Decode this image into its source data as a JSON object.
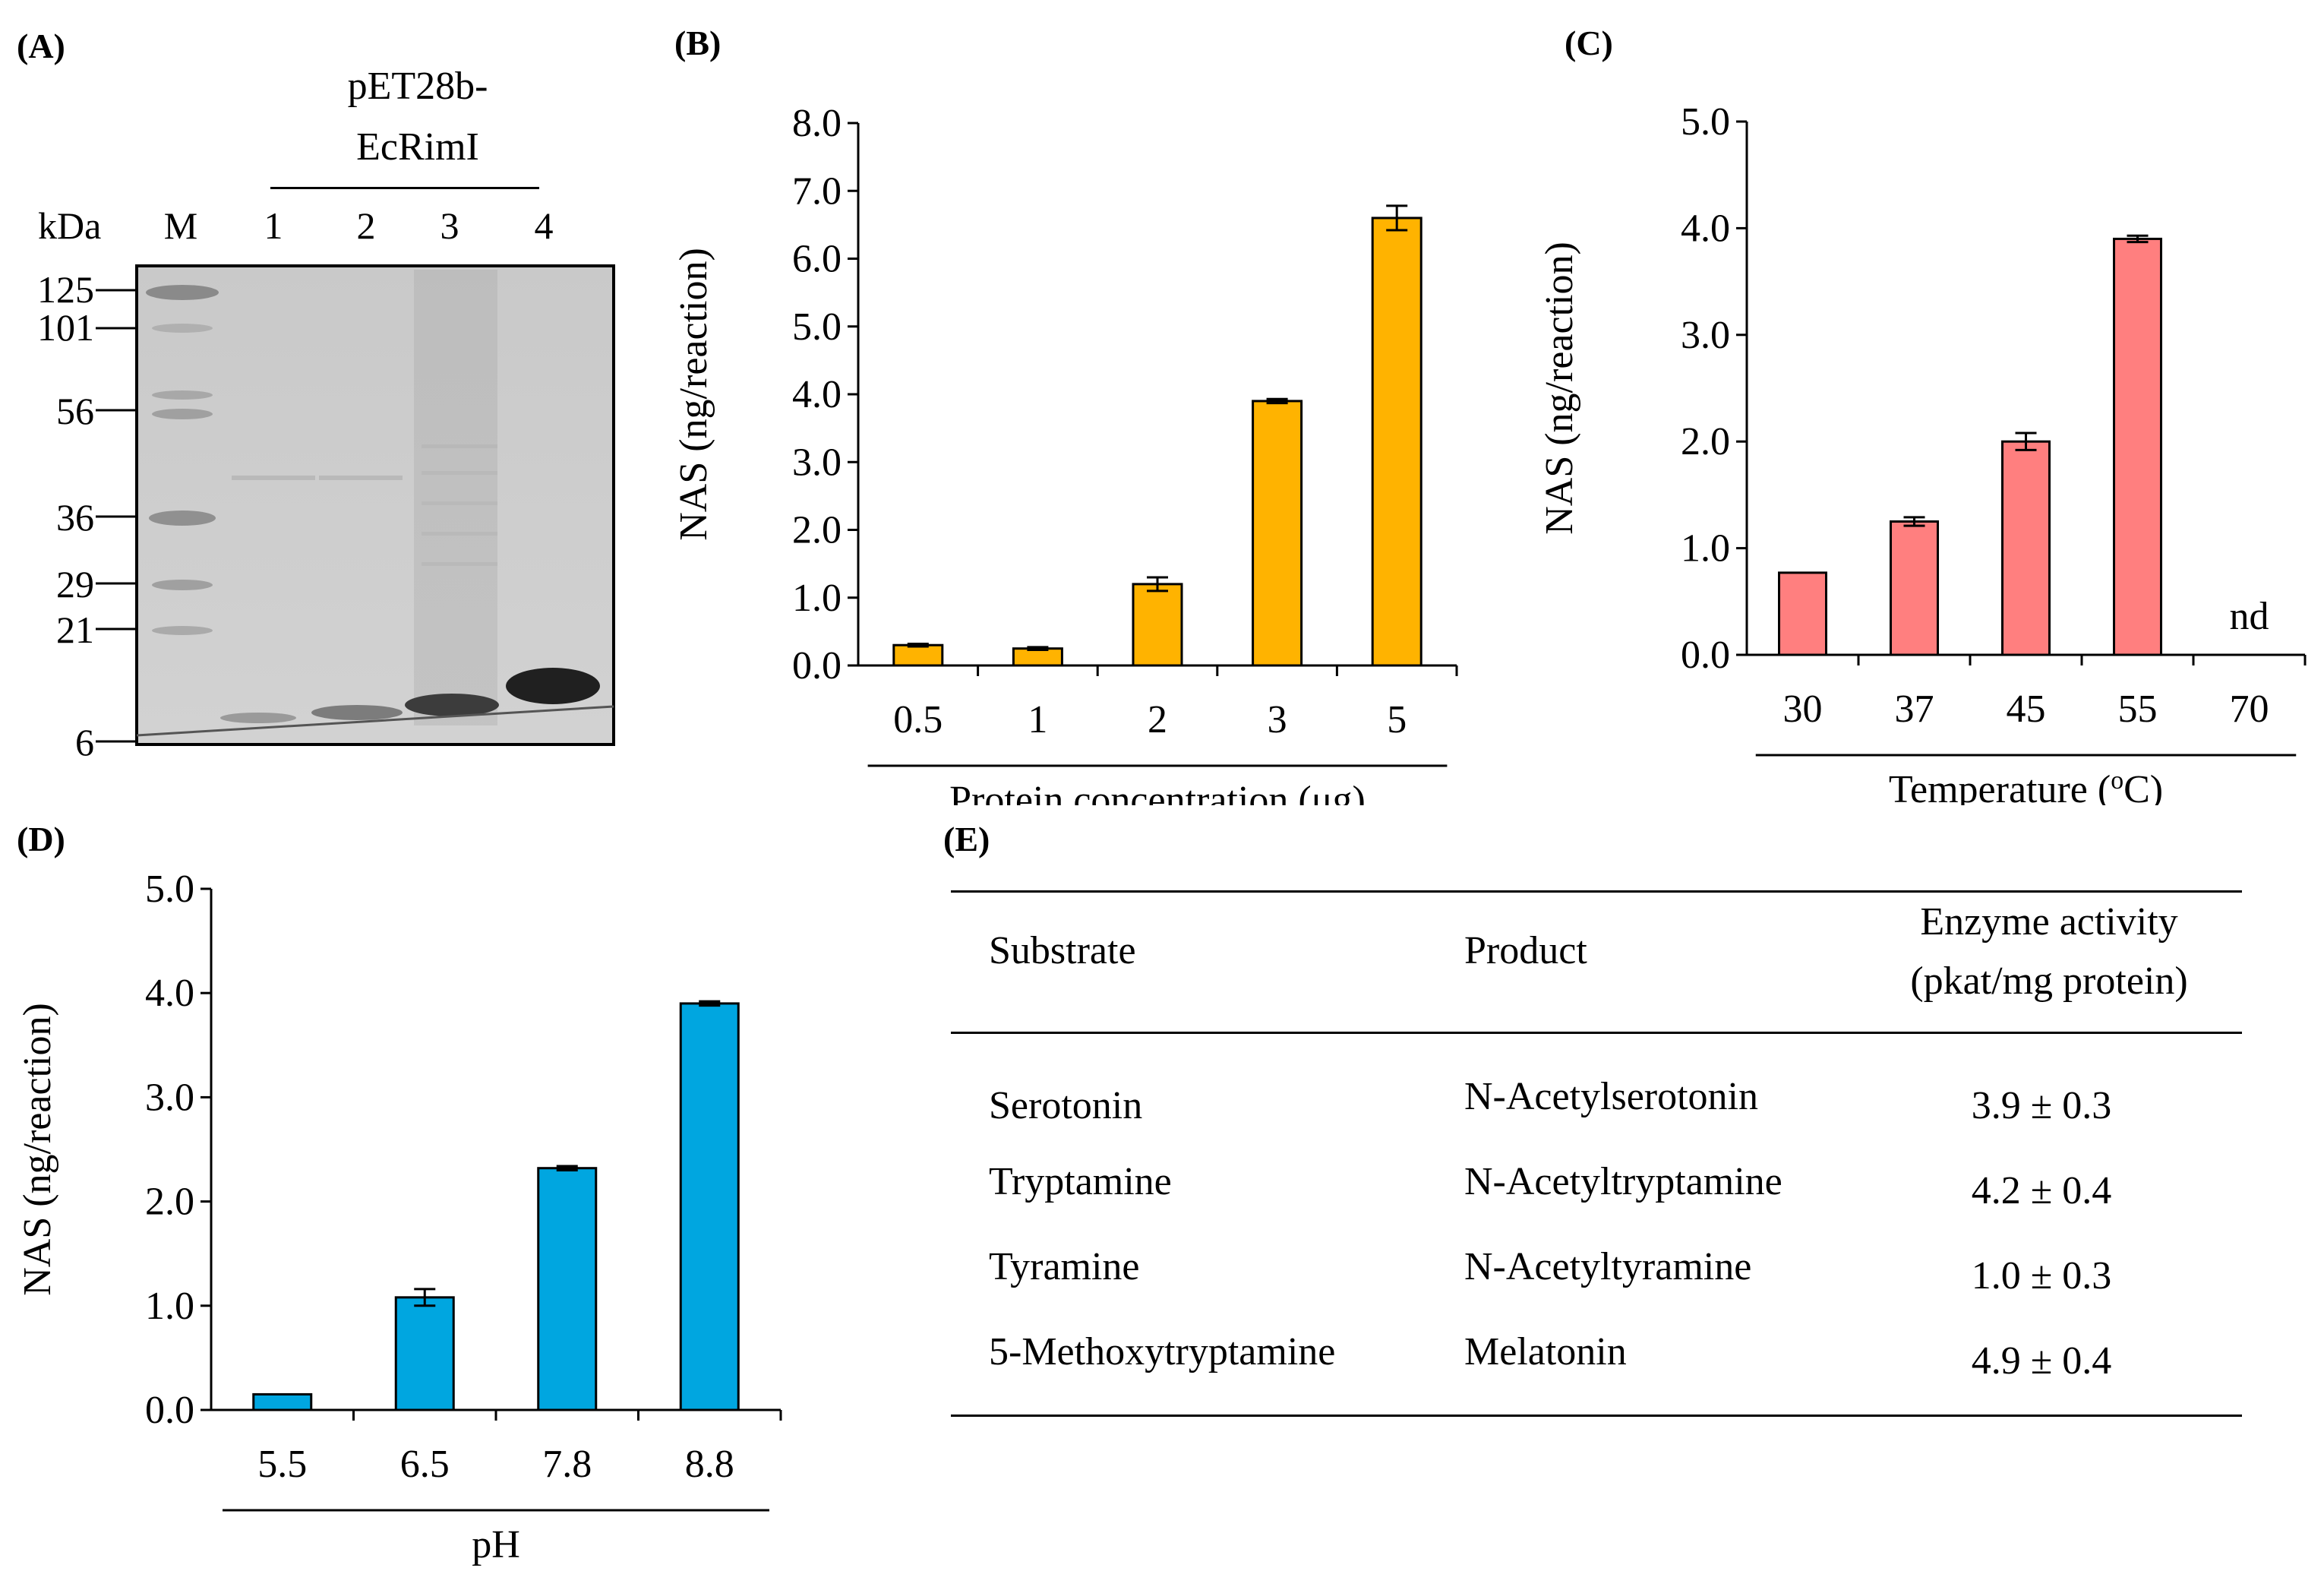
{
  "panelA": {
    "label": "(A)",
    "construct_line1": "pET28b-",
    "construct_line2": "EcRimI",
    "kda_label": "kDa",
    "lanes": [
      "M",
      "1",
      "2",
      "3",
      "4"
    ],
    "markers": [
      "125",
      "101",
      "56",
      "36",
      "29",
      "21",
      "6"
    ]
  },
  "chart_data": [
    {
      "id": "B",
      "label": "(B)",
      "type": "bar",
      "categories": [
        "0.5",
        "1",
        "2",
        "3",
        "5"
      ],
      "values": [
        0.3,
        0.25,
        1.2,
        3.9,
        6.6
      ],
      "errors": [
        0.02,
        0.02,
        0.1,
        0.03,
        0.18
      ],
      "ylabel": "NAS (ng/reaction)",
      "xlabel": "Protein concentration (μg)",
      "ylim": [
        0,
        8
      ],
      "yticks": [
        "0.0",
        "1.0",
        "2.0",
        "3.0",
        "4.0",
        "5.0",
        "6.0",
        "7.0",
        "8.0"
      ],
      "color": "#FFB300"
    },
    {
      "id": "C",
      "label": "(C)",
      "type": "bar",
      "categories": [
        "30",
        "37",
        "45",
        "55",
        "70"
      ],
      "values": [
        0.77,
        1.25,
        2.0,
        3.9,
        0
      ],
      "errors": [
        0.0,
        0.04,
        0.08,
        0.03,
        0
      ],
      "annotations": [
        "",
        "",
        "",
        "",
        "nd"
      ],
      "ylabel": "NAS (ng/reaction)",
      "xlabel_main": "Temperature (",
      "xlabel_sup": "o",
      "xlabel_end": "C)",
      "ylim": [
        0,
        5
      ],
      "yticks": [
        "0.0",
        "1.0",
        "2.0",
        "3.0",
        "4.0",
        "5.0"
      ],
      "color": "#FF7F7F"
    },
    {
      "id": "D",
      "label": "(D)",
      "type": "bar",
      "categories": [
        "5.5",
        "6.5",
        "7.8",
        "8.8"
      ],
      "values": [
        0.15,
        1.08,
        2.32,
        3.9
      ],
      "errors": [
        0.0,
        0.08,
        0.02,
        0.02
      ],
      "ylabel": "NAS (ng/reaction)",
      "xlabel": "pH",
      "ylim": [
        0,
        5
      ],
      "yticks": [
        "0.0",
        "1.0",
        "2.0",
        "3.0",
        "4.0",
        "5.0"
      ],
      "color": "#00A6E0"
    }
  ],
  "panelE": {
    "label": "(E)",
    "headers": [
      "Substrate",
      "Product",
      "Enzyme activity",
      "(pkat/mg protein)"
    ],
    "rows": [
      {
        "substrate": "Serotonin",
        "product": "N-Acetylserotonin",
        "activity": "3.9 ± 0.3"
      },
      {
        "substrate": "Tryptamine",
        "product": "N-Acetyltryptamine",
        "activity": "4.2 ± 0.4"
      },
      {
        "substrate": "Tyramine",
        "product": "N-Acetyltyramine",
        "activity": "1.0 ± 0.3"
      },
      {
        "substrate": "5-Methoxytryptamine",
        "product": "Melatonin",
        "activity": "4.9 ± 0.4"
      }
    ]
  }
}
